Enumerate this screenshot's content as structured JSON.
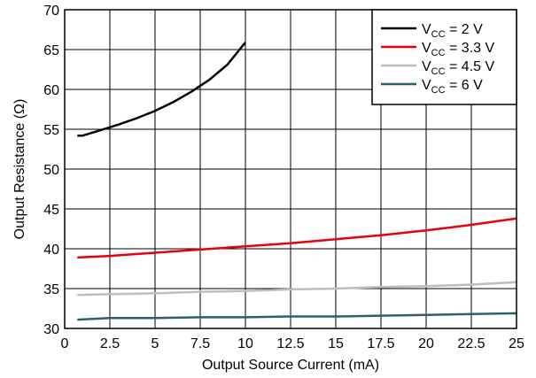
{
  "chart_data": {
    "type": "line",
    "title": "",
    "xlabel": "Output Source Current (mA)",
    "ylabel": "Output Resistance (Ω)",
    "xlim": [
      0,
      25
    ],
    "ylim": [
      30,
      70
    ],
    "xticks": [
      "0",
      "2.5",
      "5",
      "7.5",
      "10",
      "12.5",
      "15",
      "17.5",
      "20",
      "22.5",
      "25"
    ],
    "yticks": [
      "30",
      "35",
      "40",
      "45",
      "50",
      "55",
      "60",
      "65",
      "70"
    ],
    "grid": true,
    "legend_position": "top-right",
    "series": [
      {
        "name": "VCC = 2 V",
        "legend": {
          "prefix": "V",
          "sub": "CC",
          "suffix": " = 2 V"
        },
        "color": "#000000",
        "x": [
          0.7,
          1,
          2,
          3,
          4,
          5,
          6,
          7,
          8,
          9,
          10
        ],
        "y": [
          54.2,
          54.2,
          54.9,
          55.6,
          56.4,
          57.3,
          58.4,
          59.7,
          61.2,
          63.1,
          65.9
        ]
      },
      {
        "name": "VCC = 3.3 V",
        "legend": {
          "prefix": "V",
          "sub": "CC",
          "suffix": " = 3.3 V"
        },
        "color": "#e8000d",
        "x": [
          0.7,
          2.5,
          5,
          7.5,
          10,
          12.5,
          15,
          17.5,
          20,
          22.5,
          25
        ],
        "y": [
          38.9,
          39.1,
          39.5,
          39.9,
          40.3,
          40.7,
          41.2,
          41.7,
          42.3,
          43.0,
          43.8
        ]
      },
      {
        "name": "VCC = 4.5 V",
        "legend": {
          "prefix": "V",
          "sub": "CC",
          "suffix": " = 4.5 V"
        },
        "color": "#bdbdbd",
        "x": [
          0.7,
          2.5,
          5,
          7.5,
          10,
          12.5,
          15,
          17.5,
          20,
          22.5,
          25
        ],
        "y": [
          34.2,
          34.3,
          34.4,
          34.6,
          34.7,
          34.9,
          35.0,
          35.2,
          35.3,
          35.5,
          35.8
        ]
      },
      {
        "name": "VCC = 6 V",
        "legend": {
          "prefix": "V",
          "sub": "CC",
          "suffix": " = 6 V"
        },
        "color": "#2e5e6e",
        "x": [
          0.7,
          2.5,
          5,
          7.5,
          10,
          12.5,
          15,
          17.5,
          20,
          22.5,
          25
        ],
        "y": [
          31.1,
          31.3,
          31.3,
          31.4,
          31.4,
          31.5,
          31.5,
          31.6,
          31.7,
          31.8,
          31.9
        ]
      }
    ]
  }
}
